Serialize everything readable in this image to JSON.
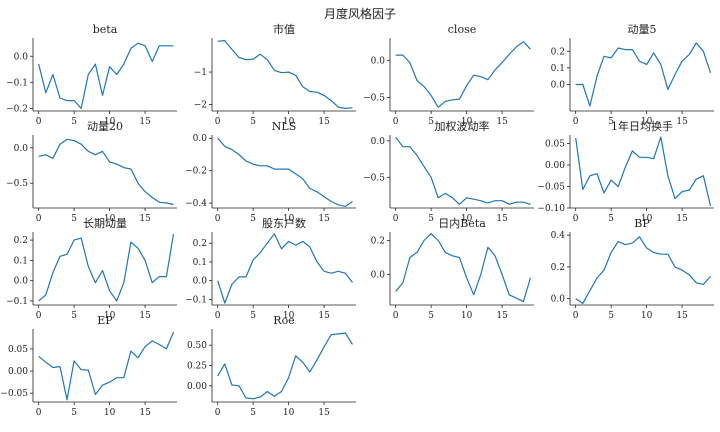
{
  "figure": {
    "suptitle": "月度风格因子"
  },
  "colors": {
    "line": "#1f77b4",
    "axis": "#222222"
  },
  "chart_data": [
    {
      "type": "line",
      "title": "beta",
      "x": [
        0,
        1,
        2,
        3,
        4,
        5,
        6,
        7,
        8,
        9,
        10,
        11,
        12,
        13,
        14,
        15,
        16,
        17,
        18,
        19
      ],
      "values": [
        -0.03,
        -0.14,
        -0.07,
        -0.16,
        -0.17,
        -0.17,
        -0.2,
        -0.07,
        -0.03,
        -0.15,
        -0.04,
        -0.07,
        -0.03,
        0.03,
        0.05,
        0.04,
        -0.02,
        0.04,
        0.04,
        0.04
      ],
      "ylim": [
        -0.21,
        0.07
      ],
      "yticks": [
        0.0,
        -0.1,
        -0.2
      ],
      "yticklabels": [
        "0.0",
        "−0.1",
        "−0.2"
      ],
      "xticks": [
        0,
        5,
        10,
        15
      ],
      "xticklabels": [
        "0",
        "5",
        "10",
        "15"
      ]
    },
    {
      "type": "line",
      "title": "市值",
      "x": [
        0,
        1,
        2,
        3,
        4,
        5,
        6,
        7,
        8,
        9,
        10,
        11,
        12,
        13,
        14,
        15,
        16,
        17,
        18,
        19
      ],
      "values": [
        -0.05,
        -0.03,
        -0.3,
        -0.55,
        -0.62,
        -0.6,
        -0.45,
        -0.62,
        -0.95,
        -1.02,
        -1.0,
        -1.1,
        -1.45,
        -1.6,
        -1.62,
        -1.72,
        -1.88,
        -2.08,
        -2.12,
        -2.1
      ],
      "ylim": [
        -2.2,
        0.05
      ],
      "yticks": [
        -1,
        -2
      ],
      "yticklabels": [
        "−1",
        "−2"
      ],
      "xticks": [
        0,
        5,
        10,
        15
      ],
      "xticklabels": [
        "0",
        "5",
        "10",
        "15"
      ]
    },
    {
      "type": "line",
      "title": "close",
      "x": [
        0,
        1,
        2,
        3,
        4,
        5,
        6,
        7,
        8,
        9,
        10,
        11,
        12,
        13,
        14,
        15,
        16,
        17,
        18,
        19
      ],
      "values": [
        0.07,
        0.07,
        -0.03,
        -0.27,
        -0.35,
        -0.47,
        -0.63,
        -0.55,
        -0.53,
        -0.52,
        -0.34,
        -0.2,
        -0.22,
        -0.26,
        -0.13,
        -0.03,
        0.08,
        0.18,
        0.25,
        0.15
      ],
      "ylim": [
        -0.68,
        0.3
      ],
      "yticks": [
        0.0,
        -0.5
      ],
      "yticklabels": [
        "0.0",
        "−0.5"
      ],
      "xticks": [
        0,
        5,
        10,
        15
      ],
      "xticklabels": [
        "0",
        "5",
        "10",
        "15"
      ]
    },
    {
      "type": "line",
      "title": "动量5",
      "x": [
        0,
        1,
        2,
        3,
        4,
        5,
        6,
        7,
        8,
        9,
        10,
        11,
        12,
        13,
        14,
        15,
        16,
        17,
        18,
        19
      ],
      "values": [
        0.0,
        0.0,
        -0.13,
        0.05,
        0.17,
        0.16,
        0.22,
        0.21,
        0.21,
        0.14,
        0.12,
        0.19,
        0.12,
        -0.03,
        0.06,
        0.14,
        0.18,
        0.25,
        0.2,
        0.07
      ],
      "ylim": [
        -0.16,
        0.28
      ],
      "yticks": [
        0.0,
        0.1,
        0.2
      ],
      "yticklabels": [
        "0.0",
        "0.1",
        "0.2"
      ],
      "xticks": [
        0,
        5,
        10,
        15
      ],
      "xticklabels": [
        "0",
        "5",
        "10",
        "15"
      ]
    },
    {
      "type": "line",
      "title": "动量20",
      "x": [
        0,
        1,
        2,
        3,
        4,
        5,
        6,
        7,
        8,
        9,
        10,
        11,
        12,
        13,
        14,
        15,
        16,
        17,
        18,
        19
      ],
      "values": [
        -0.12,
        -0.1,
        -0.15,
        0.05,
        0.12,
        0.1,
        0.05,
        -0.05,
        -0.1,
        -0.05,
        -0.2,
        -0.23,
        -0.28,
        -0.3,
        -0.5,
        -0.62,
        -0.7,
        -0.77,
        -0.78,
        -0.8
      ],
      "ylim": [
        -0.85,
        0.18
      ],
      "yticks": [
        0.0,
        -0.5
      ],
      "yticklabels": [
        "0.0",
        "−0.5"
      ],
      "xticks": [
        0,
        5,
        10,
        15
      ],
      "xticklabels": [
        "0",
        "5",
        "10",
        "15"
      ]
    },
    {
      "type": "line",
      "title": "NLS",
      "x": [
        0,
        1,
        2,
        3,
        4,
        5,
        6,
        7,
        8,
        9,
        10,
        11,
        12,
        13,
        14,
        15,
        16,
        17,
        18,
        19
      ],
      "values": [
        0.0,
        -0.05,
        -0.07,
        -0.1,
        -0.14,
        -0.16,
        -0.17,
        -0.17,
        -0.19,
        -0.19,
        -0.19,
        -0.22,
        -0.25,
        -0.31,
        -0.33,
        -0.36,
        -0.39,
        -0.41,
        -0.42,
        -0.39
      ],
      "ylim": [
        -0.43,
        0.02
      ],
      "yticks": [
        0.0,
        -0.2,
        -0.4
      ],
      "yticklabels": [
        "0.0",
        "−0.2",
        "−0.4"
      ],
      "xticks": [
        0,
        5,
        10,
        15
      ],
      "xticklabels": [
        "0",
        "5",
        "10",
        "15"
      ]
    },
    {
      "type": "line",
      "title": "加权波动率",
      "x": [
        0,
        1,
        2,
        3,
        4,
        5,
        6,
        7,
        8,
        9,
        10,
        11,
        12,
        13,
        14,
        15,
        16,
        17,
        18,
        19
      ],
      "values": [
        0.05,
        -0.08,
        -0.08,
        -0.2,
        -0.35,
        -0.5,
        -0.78,
        -0.72,
        -0.78,
        -0.87,
        -0.78,
        -0.8,
        -0.82,
        -0.85,
        -0.82,
        -0.82,
        -0.87,
        -0.84,
        -0.84,
        -0.87
      ],
      "ylim": [
        -0.92,
        0.08
      ],
      "yticks": [
        0.0,
        -0.5
      ],
      "yticklabels": [
        "0.0",
        "−0.5"
      ],
      "xticks": [
        0,
        5,
        10,
        15
      ],
      "xticklabels": [
        "0",
        "5",
        "10",
        "15"
      ]
    },
    {
      "type": "line",
      "title": "1年日均换手",
      "x": [
        0,
        1,
        2,
        3,
        4,
        5,
        6,
        7,
        8,
        9,
        10,
        11,
        12,
        13,
        14,
        15,
        16,
        17,
        18,
        19
      ],
      "values": [
        0.063,
        -0.057,
        -0.025,
        -0.02,
        -0.065,
        -0.035,
        -0.05,
        -0.005,
        0.033,
        0.018,
        0.018,
        0.015,
        0.065,
        -0.025,
        -0.078,
        -0.062,
        -0.058,
        -0.033,
        -0.025,
        -0.095
      ],
      "ylim": [
        -0.1,
        0.07
      ],
      "yticks": [
        0.05,
        0.0,
        -0.05,
        -0.1
      ],
      "yticklabels": [
        "0.05",
        "0.00",
        "−0.05",
        "−0.10"
      ],
      "xticks": [
        0,
        5,
        10,
        15
      ],
      "xticklabels": [
        "0",
        "5",
        "10",
        "15"
      ]
    },
    {
      "type": "line",
      "title": "长期动量",
      "x": [
        0,
        1,
        2,
        3,
        4,
        5,
        6,
        7,
        8,
        9,
        10,
        11,
        12,
        13,
        14,
        15,
        16,
        17,
        18,
        19
      ],
      "values": [
        -0.1,
        -0.07,
        0.04,
        0.12,
        0.13,
        0.2,
        0.21,
        0.07,
        -0.01,
        0.05,
        -0.05,
        -0.1,
        -0.01,
        0.19,
        0.16,
        0.1,
        -0.01,
        0.02,
        0.02,
        0.23
      ],
      "ylim": [
        -0.12,
        0.24
      ],
      "yticks": [
        0.2,
        0.1,
        0.0,
        -0.1
      ],
      "yticklabels": [
        "0.2",
        "0.1",
        "0.0",
        "−0.1"
      ],
      "xticks": [
        0,
        5,
        10,
        15
      ],
      "xticklabels": [
        "0",
        "5",
        "10",
        "15"
      ]
    },
    {
      "type": "line",
      "title": "股东户数",
      "x": [
        0,
        1,
        2,
        3,
        4,
        5,
        6,
        7,
        8,
        9,
        10,
        11,
        12,
        13,
        14,
        15,
        16,
        17,
        18,
        19
      ],
      "values": [
        0.0,
        -0.12,
        -0.02,
        0.02,
        0.02,
        0.11,
        0.15,
        0.2,
        0.25,
        0.17,
        0.21,
        0.19,
        0.21,
        0.18,
        0.1,
        0.05,
        0.04,
        0.05,
        0.04,
        -0.01
      ],
      "ylim": [
        -0.13,
        0.26
      ],
      "yticks": [
        0.2,
        0.1,
        0.0,
        -0.1
      ],
      "yticklabels": [
        "0.2",
        "0.1",
        "0.0",
        "−0.1"
      ],
      "xticks": [
        0,
        5,
        10,
        15
      ],
      "xticklabels": [
        "0",
        "5",
        "10",
        "15"
      ]
    },
    {
      "type": "line",
      "title": "日内Beta",
      "x": [
        0,
        1,
        2,
        3,
        4,
        5,
        6,
        7,
        8,
        9,
        10,
        11,
        12,
        13,
        14,
        15,
        16,
        17,
        18,
        19
      ],
      "values": [
        -0.1,
        -0.05,
        0.1,
        0.13,
        0.2,
        0.24,
        0.2,
        0.13,
        0.11,
        0.1,
        -0.02,
        -0.12,
        0.0,
        0.16,
        0.11,
        0.0,
        -0.12,
        -0.14,
        -0.16,
        -0.02
      ],
      "ylim": [
        -0.18,
        0.25
      ],
      "yticks": [
        0.2,
        0.0
      ],
      "yticklabels": [
        "0.2",
        "0.0"
      ],
      "xticks": [
        0,
        5,
        10,
        15
      ],
      "xticklabels": [
        "0",
        "5",
        "10",
        "15"
      ]
    },
    {
      "type": "line",
      "title": "BP",
      "x": [
        0,
        1,
        2,
        3,
        4,
        5,
        6,
        7,
        8,
        9,
        10,
        11,
        12,
        13,
        14,
        15,
        16,
        17,
        18,
        19
      ],
      "values": [
        0.0,
        -0.03,
        0.05,
        0.13,
        0.18,
        0.29,
        0.36,
        0.34,
        0.35,
        0.39,
        0.32,
        0.29,
        0.28,
        0.28,
        0.2,
        0.18,
        0.15,
        0.1,
        0.09,
        0.14
      ],
      "ylim": [
        -0.04,
        0.42
      ],
      "yticks": [
        0.4,
        0.2,
        0.0
      ],
      "yticklabels": [
        "0.4",
        "0.2",
        "0.0"
      ],
      "xticks": [
        0,
        5,
        10,
        15
      ],
      "xticklabels": [
        "0",
        "5",
        "10",
        "15"
      ]
    },
    {
      "type": "line",
      "title": "EP",
      "x": [
        0,
        1,
        2,
        3,
        4,
        5,
        6,
        7,
        8,
        9,
        10,
        11,
        12,
        13,
        14,
        15,
        16,
        17,
        18,
        19
      ],
      "values": [
        0.033,
        0.02,
        0.008,
        0.01,
        -0.065,
        0.023,
        0.003,
        0.002,
        -0.053,
        -0.032,
        -0.025,
        -0.015,
        -0.015,
        0.045,
        0.03,
        0.055,
        0.068,
        0.06,
        0.05,
        0.088
      ],
      "ylim": [
        -0.07,
        0.095
      ],
      "yticks": [
        0.05,
        0.0,
        -0.05
      ],
      "yticklabels": [
        "0.05",
        "0.00",
        "−0.05"
      ],
      "xticks": [
        0,
        5,
        10,
        15
      ],
      "xticklabels": [
        "0",
        "5",
        "10",
        "15"
      ]
    },
    {
      "type": "line",
      "title": "Roe",
      "x": [
        0,
        1,
        2,
        3,
        4,
        5,
        6,
        7,
        8,
        9,
        10,
        11,
        12,
        13,
        14,
        15,
        16,
        17,
        18,
        19
      ],
      "values": [
        0.12,
        0.27,
        0.01,
        0.0,
        -0.15,
        -0.16,
        -0.14,
        -0.07,
        -0.13,
        -0.07,
        0.1,
        0.37,
        0.29,
        0.17,
        0.32,
        0.48,
        0.63,
        0.64,
        0.65,
        0.51
      ],
      "ylim": [
        -0.2,
        0.7
      ],
      "yticks": [
        0.5,
        0.25,
        0.0
      ],
      "yticklabels": [
        "0.50",
        "0.25",
        "0.00"
      ],
      "xticks": [
        0,
        5,
        10,
        15
      ],
      "xticklabels": [
        "0",
        "5",
        "10",
        "15"
      ]
    }
  ]
}
